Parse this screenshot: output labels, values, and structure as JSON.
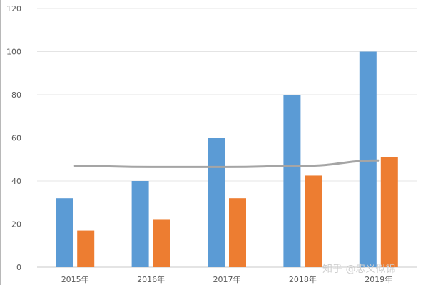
{
  "chart_data": {
    "type": "bar",
    "title": "",
    "xlabel": "",
    "ylabel": "",
    "ylim": [
      0,
      120
    ],
    "yticks": [
      0,
      20,
      40,
      60,
      80,
      100,
      120
    ],
    "grid": true,
    "categories": [
      "2015年",
      "2016年",
      "2017年",
      "2018年",
      "2019年"
    ],
    "series": [
      {
        "type": "bar",
        "color": "#5b9bd5",
        "values": [
          32,
          40,
          60,
          80,
          100
        ]
      },
      {
        "type": "bar",
        "color": "#ed7d31",
        "values": [
          17,
          22,
          32,
          42.5,
          51
        ]
      },
      {
        "type": "line",
        "color": "#a5a5a5",
        "values": [
          47,
          46.5,
          46.5,
          47,
          49.5
        ]
      }
    ]
  },
  "watermark": "知乎 @忠义似锦"
}
